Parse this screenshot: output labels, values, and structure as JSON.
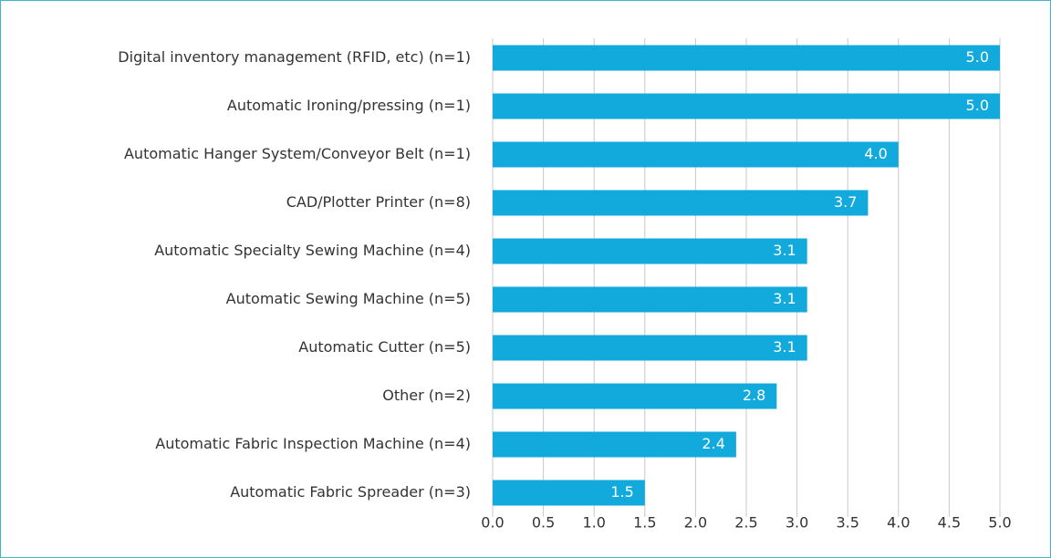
{
  "chart_data": {
    "type": "hbar",
    "categories": [
      "Digital inventory management (RFID, etc) (n=1)",
      "Automatic Ironing/pressing (n=1)",
      "Automatic  Hanger System/Conveyor Belt (n=1)",
      "CAD/Plotter Printer (n=8)",
      "Automatic Specialty Sewing Machine (n=4)",
      "Automatic Sewing Machine (n=5)",
      "Automatic Cutter (n=5)",
      "Other (n=2)",
      "Automatic Fabric Inspection Machine (n=4)",
      "Automatic Fabric Spreader (n=3)"
    ],
    "values": [
      5.0,
      5.0,
      4.0,
      3.7,
      3.1,
      3.1,
      3.1,
      2.8,
      2.4,
      1.5
    ],
    "value_labels": [
      "5.0",
      "5.0",
      "4.0",
      "3.7",
      "3.1",
      "3.1",
      "3.1",
      "2.8",
      "2.4",
      "1.5"
    ],
    "color": "#12a9dc",
    "xlim": [
      0,
      5
    ],
    "xticks": [
      {
        "value": 0,
        "label": "0.0"
      },
      0.5,
      {
        "value": 1,
        "label": "1.0"
      },
      1.5,
      {
        "value": 2,
        "label": "2.0"
      },
      2.5,
      {
        "value": 3,
        "label": "3.0"
      },
      3.5,
      {
        "value": 4,
        "label": "4.0"
      },
      4.5,
      {
        "value": 5,
        "label": "5.0"
      }
    ],
    "grid": true
  }
}
